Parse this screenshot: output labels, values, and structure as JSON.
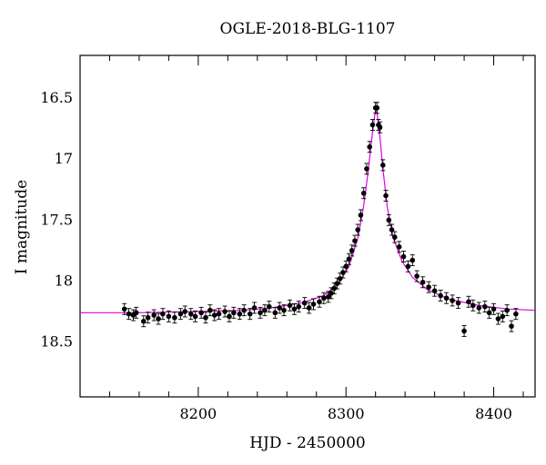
{
  "chart_data": {
    "type": "scatter",
    "title": "OGLE-2018-BLG-1107",
    "xlabel": "HJD - 2450000",
    "ylabel": "I magnitude",
    "xlim": [
      8120,
      8428
    ],
    "ylim": [
      18.95,
      16.15
    ],
    "y_inverted": true,
    "x_ticks": [
      8200,
      8300,
      8400
    ],
    "y_ticks": [
      16.5,
      17,
      17.5,
      18,
      18.5
    ],
    "x_tick_labels": [
      "8200",
      "8300",
      "8400"
    ],
    "y_tick_labels": [
      "16.5",
      "17",
      "17.5",
      "18",
      "18.5"
    ],
    "grid": false,
    "colors": {
      "points": "#000000",
      "model": "#e000e0"
    },
    "series": [
      {
        "type": "scatter",
        "points": [
          [
            8150,
            18.23
          ],
          [
            8153,
            18.27
          ],
          [
            8156,
            18.28
          ],
          [
            8158,
            18.26
          ],
          [
            8163,
            18.33
          ],
          [
            8166,
            18.3
          ],
          [
            8170,
            18.28
          ],
          [
            8173,
            18.31
          ],
          [
            8176,
            18.27
          ],
          [
            8180,
            18.29
          ],
          [
            8184,
            18.3
          ],
          [
            8188,
            18.27
          ],
          [
            8191,
            18.25
          ],
          [
            8195,
            18.27
          ],
          [
            8198,
            18.29
          ],
          [
            8202,
            18.26
          ],
          [
            8205,
            18.3
          ],
          [
            8208,
            18.24
          ],
          [
            8211,
            18.28
          ],
          [
            8214,
            18.27
          ],
          [
            8218,
            18.25
          ],
          [
            8221,
            18.29
          ],
          [
            8224,
            18.26
          ],
          [
            8228,
            18.27
          ],
          [
            8231,
            18.24
          ],
          [
            8235,
            18.27
          ],
          [
            8238,
            18.22
          ],
          [
            8242,
            18.26
          ],
          [
            8245,
            18.24
          ],
          [
            8248,
            18.21
          ],
          [
            8252,
            18.26
          ],
          [
            8255,
            18.22
          ],
          [
            8258,
            18.24
          ],
          [
            8262,
            18.2
          ],
          [
            8265,
            18.23
          ],
          [
            8268,
            18.21
          ],
          [
            8272,
            18.18
          ],
          [
            8275,
            18.22
          ],
          [
            8278,
            18.19
          ],
          [
            8282,
            18.17
          ],
          [
            8285,
            18.14
          ],
          [
            8288,
            18.13
          ],
          [
            8290,
            18.1
          ],
          [
            8292,
            18.06
          ],
          [
            8294,
            18.02
          ],
          [
            8296,
            17.98
          ],
          [
            8298,
            17.93
          ],
          [
            8300,
            17.88
          ],
          [
            8302,
            17.82
          ],
          [
            8304,
            17.75
          ],
          [
            8306,
            17.67
          ],
          [
            8308,
            17.58
          ],
          [
            8310,
            17.46
          ],
          [
            8312,
            17.28
          ],
          [
            8314,
            17.08
          ],
          [
            8316,
            16.9
          ],
          [
            8318,
            16.72
          ],
          [
            8320,
            16.58
          ],
          [
            8321,
            16.58
          ],
          [
            8322,
            16.72
          ],
          [
            8323,
            16.74
          ],
          [
            8325,
            17.05
          ],
          [
            8327,
            17.3
          ],
          [
            8329,
            17.5
          ],
          [
            8331,
            17.58
          ],
          [
            8333,
            17.64
          ],
          [
            8336,
            17.72
          ],
          [
            8339,
            17.8
          ],
          [
            8342,
            17.88
          ],
          [
            8345,
            17.83
          ],
          [
            8348,
            17.96
          ],
          [
            8352,
            18.01
          ],
          [
            8356,
            18.05
          ],
          [
            8360,
            18.08
          ],
          [
            8364,
            18.12
          ],
          [
            8368,
            18.14
          ],
          [
            8372,
            18.16
          ],
          [
            8376,
            18.18
          ],
          [
            8380,
            18.41
          ],
          [
            8383,
            18.17
          ],
          [
            8386,
            18.2
          ],
          [
            8390,
            18.22
          ],
          [
            8394,
            18.21
          ],
          [
            8397,
            18.26
          ],
          [
            8400,
            18.23
          ],
          [
            8403,
            18.31
          ],
          [
            8406,
            18.29
          ],
          [
            8409,
            18.24
          ],
          [
            8412,
            18.37
          ],
          [
            8415,
            18.27
          ]
        ]
      },
      {
        "type": "line",
        "name": "model",
        "x": [
          8120,
          8160,
          8200,
          8230,
          8250,
          8270,
          8285,
          8295,
          8302,
          8308,
          8312,
          8315,
          8317,
          8319,
          8320,
          8321,
          8323,
          8325,
          8328,
          8332,
          8338,
          8345,
          8355,
          8370,
          8390,
          8410,
          8428
        ],
        "y": [
          18.26,
          18.26,
          18.25,
          18.24,
          18.22,
          18.18,
          18.12,
          18.02,
          17.88,
          17.65,
          17.38,
          17.1,
          16.88,
          16.68,
          16.6,
          16.62,
          16.82,
          17.08,
          17.4,
          17.65,
          17.84,
          17.97,
          18.07,
          18.15,
          18.2,
          18.23,
          18.24
        ]
      }
    ]
  }
}
